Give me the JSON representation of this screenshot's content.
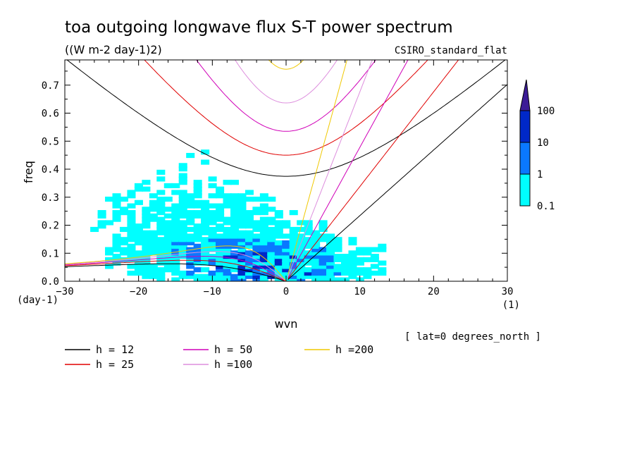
{
  "chart_data": {
    "type": "heatmap",
    "title": "toa outgoing longwave flux S-T power spectrum",
    "subtitle": "((W m-2 day-1)2)",
    "dataset": "CSIRO_standard_flat",
    "xlabel": "wvn",
    "ylabel": "freq",
    "x_unit": "(1)",
    "y_unit": "(day-1)",
    "xlim": [
      -30,
      30
    ],
    "ylim": [
      0,
      0.79
    ],
    "x_ticks": [
      -30,
      -20,
      -10,
      0,
      10,
      20,
      30
    ],
    "y_ticks": [
      0.0,
      0.1,
      0.2,
      0.3,
      0.4,
      0.5,
      0.6,
      0.7
    ],
    "lat_note": "[ lat=0 degrees_north ]",
    "colorbar": {
      "levels": [
        "0.1",
        "1",
        "10",
        "100"
      ],
      "colors": [
        "#00ffff",
        "#0a78ff",
        "#0028c8",
        "#3c1c96"
      ]
    },
    "dispersion_curves": [
      {
        "h": 12,
        "label": "h = 12",
        "color": "#000000"
      },
      {
        "h": 25,
        "label": "h = 25",
        "color": "#e00000"
      },
      {
        "h": 50,
        "label": "h = 50",
        "color": "#d000b8"
      },
      {
        "h": 100,
        "label": "h =100",
        "color": "#dd8ddd"
      },
      {
        "h": 200,
        "label": "h =200",
        "color": "#f0c800"
      }
    ]
  }
}
